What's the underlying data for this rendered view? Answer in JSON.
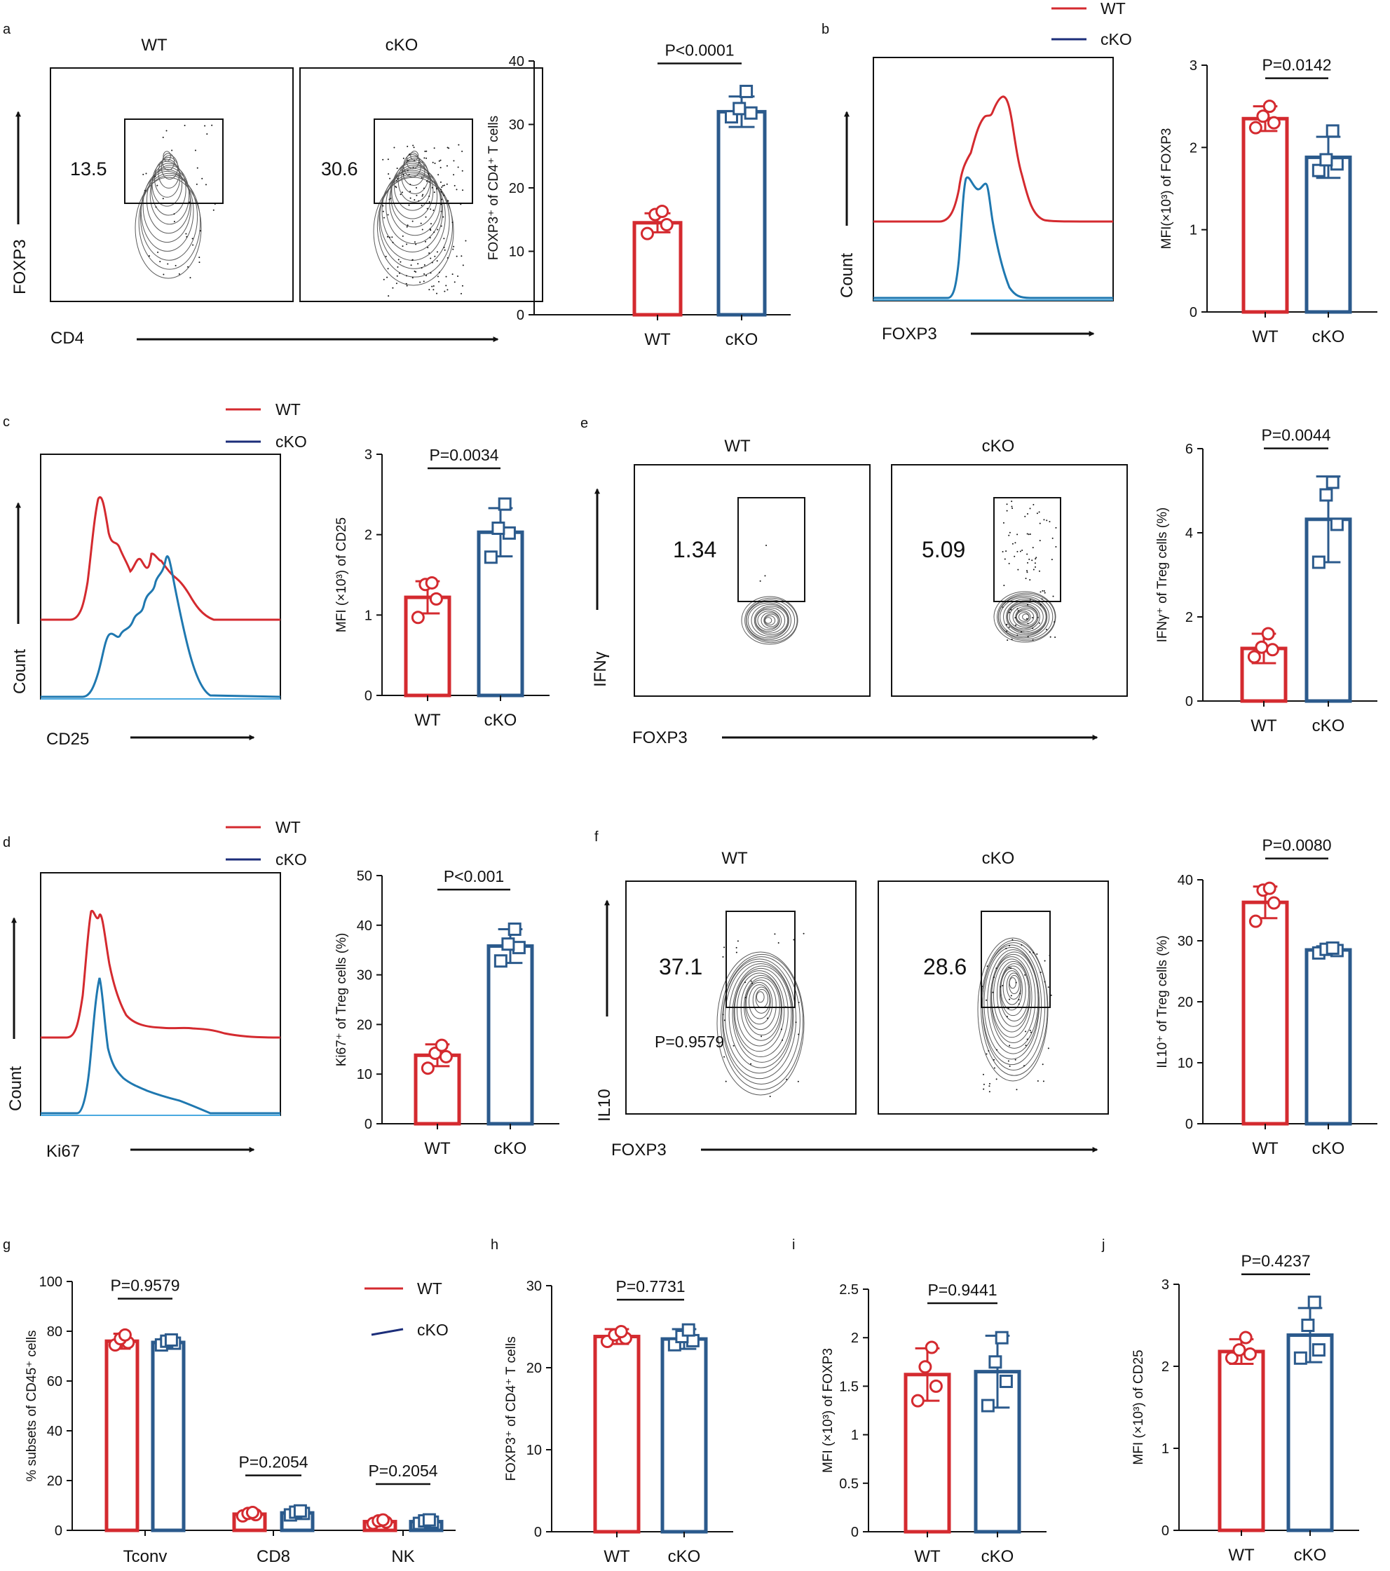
{
  "colors": {
    "wt": "#d42a2f",
    "cko": "#2b5a8c",
    "cko_hist": "#1f78b0",
    "legend_cko": "#1c2e7a",
    "contour": "#4a4a4a"
  },
  "panels": {
    "a": "a",
    "b": "b",
    "c": "c",
    "d": "d",
    "e": "e",
    "f": "f",
    "g": "g",
    "h": "h",
    "i": "i",
    "j": "j"
  },
  "groups": {
    "wt": "WT",
    "cko": "cKO"
  },
  "legend": {
    "wt": "WT",
    "cko": "cKO"
  },
  "flow": {
    "a": {
      "x_label": "CD4",
      "y_label": "FOXP3",
      "wt_value": "13.5",
      "cko_value": "30.6"
    },
    "b": {
      "x_label": "FOXP3",
      "y_label": "Count"
    },
    "c": {
      "x_label": "CD25",
      "y_label": "Count"
    },
    "d": {
      "x_label": "Ki67",
      "y_label": "Count"
    },
    "e": {
      "x_label": "FOXP3",
      "y_label": "IFNγ",
      "wt_value": "1.34",
      "cko_value": "5.09"
    },
    "f": {
      "x_label": "FOXP3",
      "y_label": "IL10",
      "wt_value": "37.1",
      "cko_value": "28.6",
      "extra_p": "P=0.9579"
    }
  },
  "chart_data": [
    {
      "id": "a",
      "type": "bar",
      "categories": [
        "WT",
        "cKO"
      ],
      "ylabel": "FOXP3⁺ of CD4⁺ T cells",
      "ylim": [
        0,
        40
      ],
      "yticks": [
        0,
        10,
        20,
        30,
        40
      ],
      "series": [
        {
          "name": "WT",
          "mean": 14.5,
          "sd": 1.5,
          "points": [
            12.8,
            14.2,
            15.8,
            16.3
          ]
        },
        {
          "name": "cKO",
          "mean": 32,
          "sd": 2.4,
          "points": [
            31.2,
            31.8,
            32.5,
            35.2
          ]
        }
      ],
      "pvalues": [
        {
          "text": "P<0.0001"
        }
      ]
    },
    {
      "id": "b",
      "type": "bar",
      "categories": [
        "WT",
        "cKO"
      ],
      "ylabel": "MFI(×10³) of FOXP3",
      "ylim": [
        0,
        3
      ],
      "yticks": [
        0,
        1,
        2,
        3
      ],
      "series": [
        {
          "name": "WT",
          "mean": 2.35,
          "sd": 0.15,
          "points": [
            2.24,
            2.3,
            2.38,
            2.5
          ]
        },
        {
          "name": "cKO",
          "mean": 1.88,
          "sd": 0.25,
          "points": [
            1.72,
            1.8,
            1.85,
            2.2
          ]
        }
      ],
      "pvalues": [
        {
          "text": "P=0.0142"
        }
      ]
    },
    {
      "id": "c",
      "type": "bar",
      "categories": [
        "WT",
        "cKO"
      ],
      "ylabel": "MFI (×10³) of CD25",
      "ylim": [
        0,
        3
      ],
      "yticks": [
        0,
        1,
        2,
        3
      ],
      "series": [
        {
          "name": "WT",
          "mean": 1.22,
          "sd": 0.2,
          "points": [
            0.97,
            1.2,
            1.38,
            1.4
          ]
        },
        {
          "name": "cKO",
          "mean": 2.03,
          "sd": 0.3,
          "points": [
            1.72,
            2.02,
            2.08,
            2.38
          ]
        }
      ],
      "pvalues": [
        {
          "text": "P=0.0034"
        }
      ]
    },
    {
      "id": "d",
      "type": "bar",
      "categories": [
        "WT",
        "cKO"
      ],
      "ylabel": "Ki67⁺ of Treg cells (%)",
      "ylim": [
        0,
        50
      ],
      "yticks": [
        0,
        10,
        20,
        30,
        40,
        50
      ],
      "series": [
        {
          "name": "WT",
          "mean": 13.8,
          "sd": 2.2,
          "points": [
            11.2,
            13.5,
            14.2,
            15.8
          ]
        },
        {
          "name": "cKO",
          "mean": 35.8,
          "sd": 3.4,
          "points": [
            32.8,
            35.5,
            36.2,
            39.2
          ]
        }
      ],
      "pvalues": [
        {
          "text": "P<0.001"
        }
      ]
    },
    {
      "id": "e",
      "type": "bar",
      "categories": [
        "WT",
        "cKO"
      ],
      "ylabel": "IFNγ⁺ of Treg cells (%)",
      "ylim": [
        0,
        6
      ],
      "yticks": [
        0,
        2,
        4,
        6
      ],
      "series": [
        {
          "name": "WT",
          "mean": 1.25,
          "sd": 0.35,
          "points": [
            1.05,
            1.22,
            1.28,
            1.6
          ]
        },
        {
          "name": "cKO",
          "mean": 4.32,
          "sd": 1.02,
          "points": [
            3.3,
            4.2,
            4.9,
            5.2
          ]
        }
      ],
      "pvalues": [
        {
          "text": "P=0.0044"
        }
      ]
    },
    {
      "id": "f",
      "type": "bar",
      "categories": [
        "WT",
        "cKO"
      ],
      "ylabel": "IL10⁺ of Treg cells (%)",
      "ylim": [
        0,
        40
      ],
      "yticks": [
        0,
        10,
        20,
        30,
        40
      ],
      "series": [
        {
          "name": "WT",
          "mean": 36.3,
          "sd": 2.6,
          "points": [
            33.2,
            36.2,
            38.3,
            38.6
          ]
        },
        {
          "name": "cKO",
          "mean": 28.5,
          "sd": 0.6,
          "points": [
            28,
            28.4,
            28.6,
            28.8
          ]
        }
      ],
      "pvalues": [
        {
          "text": "P=0.0080"
        }
      ]
    },
    {
      "id": "g",
      "type": "bar",
      "categories": [
        "Tconv",
        "CD8",
        "NK"
      ],
      "ylabel": "% subsets of CD45⁺ cells",
      "ylim": [
        0,
        100
      ],
      "yticks": [
        0,
        20,
        40,
        60,
        80,
        100
      ],
      "series": [
        {
          "name": "WT",
          "means": [
            76,
            6.5,
            3.5
          ],
          "sds": [
            3,
            1,
            1
          ],
          "points": [
            [
              74.5,
              75.5,
              77,
              78.5
            ],
            [
              5.8,
              6.3,
              6.8,
              7.2
            ],
            [
              2.8,
              3.3,
              3.8,
              4.2
            ]
          ]
        },
        {
          "name": "cKO",
          "means": [
            75.5,
            7,
            3.5
          ],
          "sds": [
            1.5,
            1,
            1
          ],
          "points": [
            [
              74.5,
              75.2,
              76,
              76.5
            ],
            [
              6.2,
              6.8,
              7.3,
              7.8
            ],
            [
              2.8,
              3.3,
              3.8,
              4.2
            ]
          ]
        }
      ],
      "pvalues": [
        {
          "text": "P=0.9579"
        },
        {
          "text": "P=0.2054"
        },
        {
          "text": "P=0.2054"
        }
      ]
    },
    {
      "id": "h",
      "type": "bar",
      "categories": [
        "WT",
        "cKO"
      ],
      "ylabel": "FOXP3⁺ of CD4⁺ T cells",
      "ylim": [
        0,
        30
      ],
      "yticks": [
        0,
        10,
        20,
        30
      ],
      "series": [
        {
          "name": "WT",
          "mean": 23.8,
          "sd": 0.9,
          "points": [
            23.2,
            23.6,
            24,
            24.4
          ]
        },
        {
          "name": "cKO",
          "mean": 23.5,
          "sd": 1.2,
          "points": [
            22.8,
            23.3,
            23.8,
            24.6
          ]
        }
      ],
      "pvalues": [
        {
          "text": "P=0.7731"
        }
      ]
    },
    {
      "id": "i",
      "type": "bar",
      "categories": [
        "WT",
        "cKO"
      ],
      "ylabel": "MFI (×10³) of FOXP3",
      "ylim": [
        0,
        2.5
      ],
      "yticks": [
        0,
        0.5,
        1.0,
        1.5,
        2.0,
        2.5
      ],
      "series": [
        {
          "name": "WT",
          "mean": 1.62,
          "sd": 0.27,
          "points": [
            1.35,
            1.5,
            1.7,
            1.9
          ]
        },
        {
          "name": "cKO",
          "mean": 1.65,
          "sd": 0.37,
          "points": [
            1.3,
            1.55,
            1.75,
            2.0
          ]
        }
      ],
      "pvalues": [
        {
          "text": "P=0.9441"
        }
      ]
    },
    {
      "id": "j",
      "type": "bar",
      "categories": [
        "WT",
        "cKO"
      ],
      "ylabel": "MFI (×10³) of CD25",
      "ylim": [
        0,
        3
      ],
      "yticks": [
        0,
        1,
        2,
        3
      ],
      "series": [
        {
          "name": "WT",
          "mean": 2.18,
          "sd": 0.15,
          "points": [
            2.1,
            2.15,
            2.2,
            2.35
          ]
        },
        {
          "name": "cKO",
          "mean": 2.38,
          "sd": 0.33,
          "points": [
            2.1,
            2.2,
            2.5,
            2.78
          ]
        }
      ],
      "pvalues": [
        {
          "text": "P=0.4237"
        }
      ]
    }
  ]
}
